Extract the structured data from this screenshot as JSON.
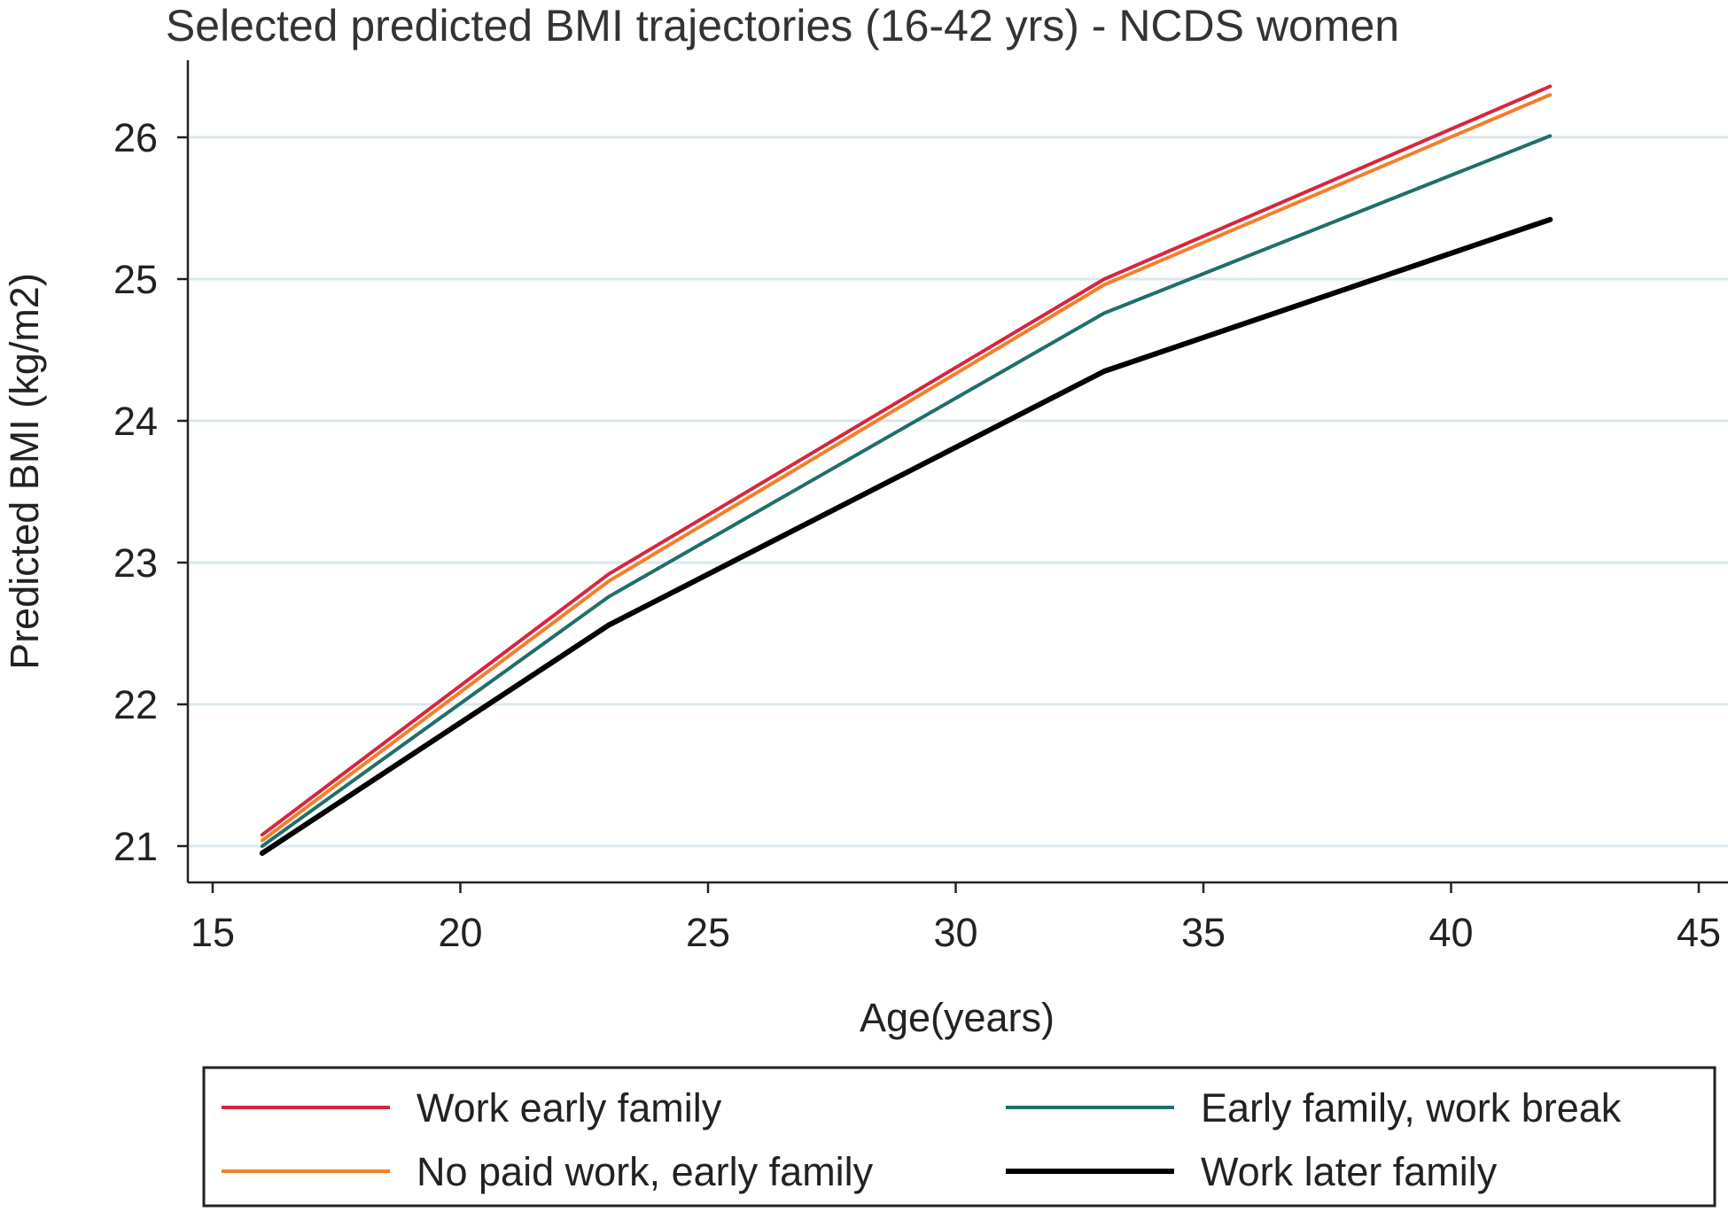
{
  "chart_data": {
    "type": "line",
    "title": "Selected predicted BMI trajectories (16-42 yrs) - NCDS women",
    "xlabel": "Age(years)",
    "ylabel": "Predicted BMI (kg/m2)",
    "xlim": [
      15,
      45
    ],
    "ylim": [
      21,
      26
    ],
    "xticks": [
      15,
      20,
      25,
      30,
      35,
      40,
      45
    ],
    "yticks": [
      21,
      22,
      23,
      24,
      25,
      26
    ],
    "grid": true,
    "legend_position": "bottom",
    "x": [
      16,
      23,
      33,
      42
    ],
    "series": [
      {
        "name": "Work early family",
        "color": "#d7263d",
        "values": [
          21.08,
          22.92,
          25.0,
          26.36
        ]
      },
      {
        "name": "No paid work, early family",
        "color": "#f0802a",
        "values": [
          21.04,
          22.87,
          24.96,
          26.3
        ]
      },
      {
        "name": "Early family, work break",
        "color": "#1f6f6a",
        "values": [
          21.0,
          22.76,
          24.76,
          26.01
        ]
      },
      {
        "name": "Work later family",
        "color": "#000000",
        "values": [
          20.95,
          22.56,
          24.35,
          25.42
        ]
      }
    ]
  }
}
